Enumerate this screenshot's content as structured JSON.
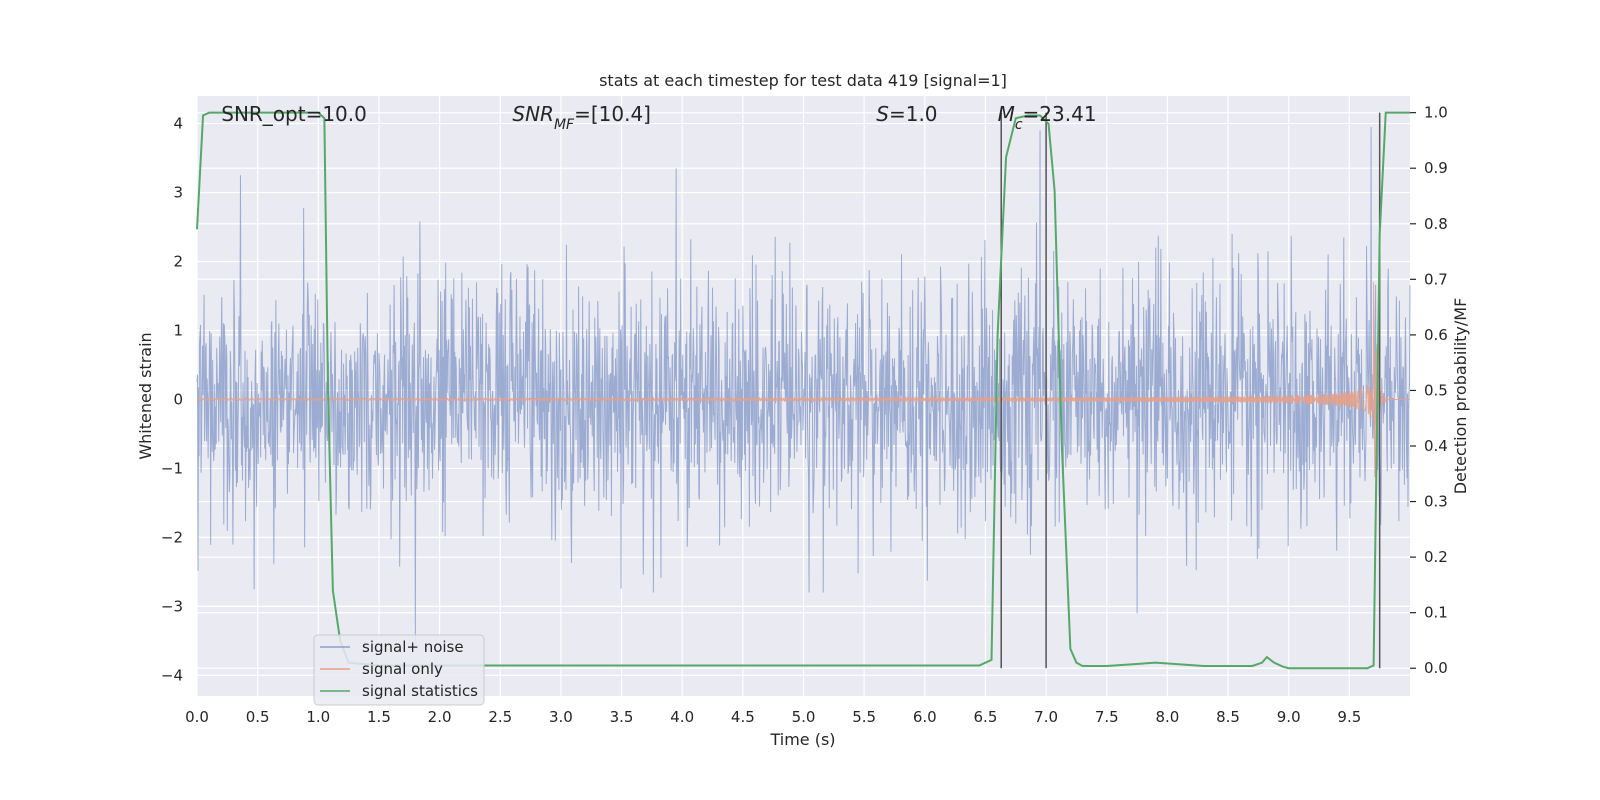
{
  "chart_data": {
    "type": "line",
    "title": "stats at each timestep for test data 419 [signal=1]",
    "xlabel": "Time (s)",
    "ylabel_left": "Whitened strain",
    "ylabel_right": "Detection probability/MF",
    "xlim": [
      0.0,
      10.0
    ],
    "ylim_left": [
      -4.3,
      4.4
    ],
    "ylim_right": [
      -0.05,
      1.03
    ],
    "x_ticks": [
      0.0,
      0.5,
      1.0,
      1.5,
      2.0,
      2.5,
      3.0,
      3.5,
      4.0,
      4.5,
      5.0,
      5.5,
      6.0,
      6.5,
      7.0,
      7.5,
      8.0,
      8.5,
      9.0,
      9.5
    ],
    "x_tick_labels": [
      "0.0",
      "0.5",
      "1.0",
      "1.5",
      "2.0",
      "2.5",
      "3.0",
      "3.5",
      "4.0",
      "4.5",
      "5.0",
      "5.5",
      "6.0",
      "6.5",
      "7.0",
      "7.5",
      "8.0",
      "8.5",
      "9.0",
      "9.5"
    ],
    "y_left_ticks": [
      -4,
      -3,
      -2,
      -1,
      0,
      1,
      2,
      3,
      4
    ],
    "y_left_tick_labels": [
      "−4",
      "−3",
      "−2",
      "−1",
      "0",
      "1",
      "2",
      "3",
      "4"
    ],
    "y_right_ticks": [
      0.0,
      0.1,
      0.2,
      0.3,
      0.4,
      0.5,
      0.6,
      0.7,
      0.8,
      0.9,
      1.0
    ],
    "y_right_tick_labels": [
      "0.0",
      "0.1",
      "0.2",
      "0.3",
      "0.4",
      "0.5",
      "0.6",
      "0.7",
      "0.8",
      "0.9",
      "1.0"
    ],
    "grid": true,
    "legend_placement": "lower-left",
    "annotations": [
      {
        "parts": [
          {
            "t": "SNR_opt=10.0",
            "italic": false
          }
        ],
        "x": 0.2
      },
      {
        "parts": [
          {
            "t": "SNR",
            "italic": true
          },
          {
            "t": "MF",
            "italic": true,
            "sub": true
          },
          {
            "t": "=[10.4]",
            "italic": false
          }
        ],
        "x": 2.6
      },
      {
        "parts": [
          {
            "t": "S",
            "italic": true
          },
          {
            "t": "=1.0",
            "italic": false
          }
        ],
        "x": 5.6
      },
      {
        "parts": [
          {
            "t": "M",
            "italic": true
          },
          {
            "t": "c",
            "italic": true,
            "sub": true
          },
          {
            "t": "=23.41",
            "italic": false
          }
        ],
        "x": 6.6
      }
    ],
    "vertical_markers": [
      6.63,
      7.0,
      9.75
    ],
    "series": [
      {
        "name": "signal+ noise",
        "color": "#8da0cb",
        "axis": "left",
        "kind": "noise",
        "description_values": {
          "typical_amplitude": 1.5,
          "peaks": [
            [
              0.36,
              3.25
            ],
            [
              1.8,
              -3.5
            ],
            [
              3.95,
              3.35
            ],
            [
              6.95,
              3.9
            ],
            [
              9.68,
              3.95
            ],
            [
              7.75,
              -3.1
            ],
            [
              0.47,
              -2.75
            ]
          ]
        }
      },
      {
        "name": "signal only",
        "color": "#e5a08a",
        "axis": "left",
        "kind": "chirp",
        "x_merger": 9.7,
        "peak_amplitude": 1.7
      },
      {
        "name": "signal statistics",
        "color": "#55a868",
        "axis": "right",
        "x": [
          0.0,
          0.05,
          0.1,
          0.2,
          0.5,
          1.0,
          1.05,
          1.08,
          1.12,
          1.18,
          1.25,
          1.5,
          2.0,
          3.0,
          4.0,
          5.0,
          6.0,
          6.45,
          6.55,
          6.6,
          6.67,
          6.75,
          6.85,
          6.95,
          7.02,
          7.07,
          7.13,
          7.2,
          7.25,
          7.3,
          7.5,
          7.9,
          8.3,
          8.7,
          8.78,
          8.82,
          8.88,
          8.95,
          9.0,
          9.5,
          9.65,
          9.7,
          9.75,
          9.8,
          9.85,
          10.0
        ],
        "y": [
          0.79,
          0.995,
          1.0,
          1.0,
          1.0,
          1.0,
          0.99,
          0.5,
          0.14,
          0.05,
          0.01,
          0.005,
          0.005,
          0.005,
          0.005,
          0.005,
          0.005,
          0.005,
          0.015,
          0.6,
          0.92,
          0.99,
          0.995,
          0.995,
          0.98,
          0.86,
          0.4,
          0.035,
          0.01,
          0.004,
          0.004,
          0.01,
          0.004,
          0.004,
          0.01,
          0.02,
          0.01,
          0.003,
          0.0,
          0.0,
          0.0,
          0.005,
          0.78,
          1.0,
          1.0,
          1.0
        ]
      }
    ]
  }
}
